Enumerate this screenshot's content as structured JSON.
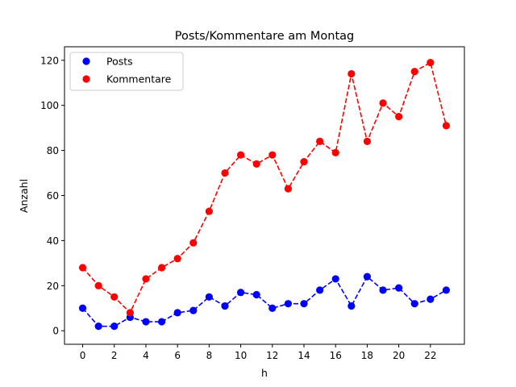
{
  "chart_data": {
    "type": "line",
    "title": "Posts/Kommentare am Montag",
    "xlabel": "h",
    "ylabel": "Anzahl",
    "xlim": [
      -1.15,
      24.15
    ],
    "ylim": [
      -6,
      126
    ],
    "xticks": [
      0,
      2,
      4,
      6,
      8,
      10,
      12,
      14,
      16,
      18,
      20,
      22
    ],
    "yticks": [
      0,
      20,
      40,
      60,
      80,
      100,
      120
    ],
    "grid": false,
    "legend_position": "top-left",
    "x": [
      0,
      1,
      2,
      3,
      4,
      5,
      6,
      7,
      8,
      9,
      10,
      11,
      12,
      13,
      14,
      15,
      16,
      17,
      18,
      19,
      20,
      21,
      22,
      23
    ],
    "series": [
      {
        "name": "Posts",
        "color": "#0000ff",
        "style": "dashed-with-markers",
        "values": [
          10,
          2,
          2,
          6,
          4,
          4,
          8,
          9,
          15,
          11,
          17,
          16,
          10,
          12,
          12,
          18,
          23,
          11,
          24,
          18,
          19,
          12,
          14,
          18
        ]
      },
      {
        "name": "Kommentare",
        "color": "#ff0000",
        "style": "dashed-with-markers",
        "values": [
          28,
          20,
          15,
          8,
          23,
          28,
          32,
          39,
          53,
          70,
          78,
          74,
          78,
          63,
          75,
          84,
          79,
          114,
          84,
          101,
          95,
          115,
          119,
          91
        ]
      }
    ]
  }
}
